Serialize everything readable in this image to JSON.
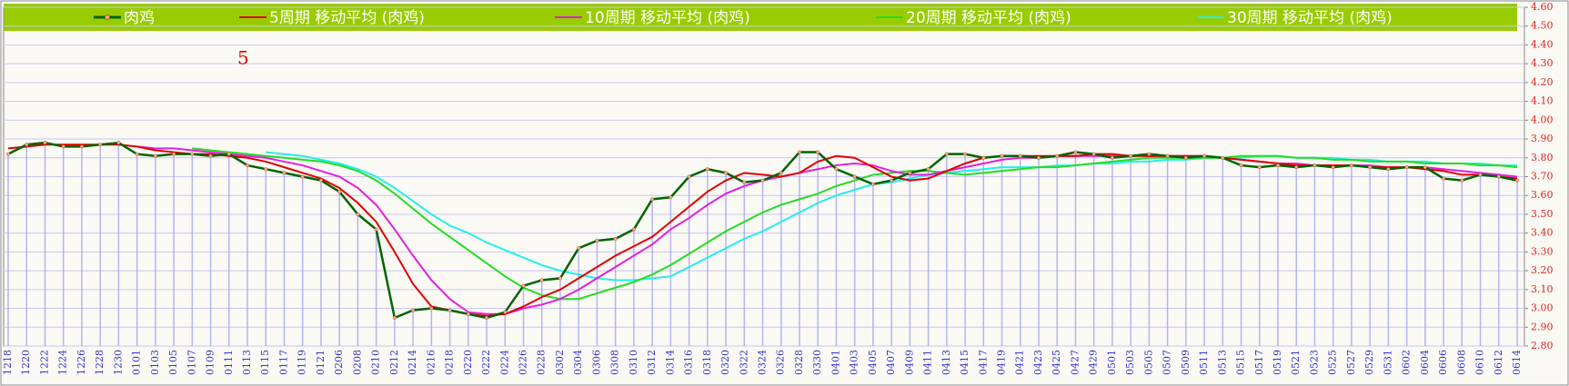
{
  "chart_data": {
    "type": "line",
    "categories": [
      "1218",
      "1220",
      "1222",
      "1224",
      "1226",
      "1228",
      "1230",
      "0101",
      "0103",
      "0105",
      "0107",
      "0109",
      "0111",
      "0113",
      "0115",
      "0117",
      "0119",
      "0121",
      "0206",
      "0208",
      "0210",
      "0212",
      "0214",
      "0216",
      "0218",
      "0220",
      "0222",
      "0224",
      "0226",
      "0228",
      "0302",
      "0304",
      "0306",
      "0308",
      "0310",
      "0312",
      "0314",
      "0316",
      "0318",
      "0320",
      "0322",
      "0324",
      "0326",
      "0328",
      "0330",
      "0401",
      "0403",
      "0405",
      "0407",
      "0409",
      "0411",
      "0413",
      "0415",
      "0417",
      "0419",
      "0421",
      "0423",
      "0425",
      "0427",
      "0429",
      "0501",
      "0503",
      "0505",
      "0507",
      "0509",
      "0511",
      "0513",
      "0515",
      "0517",
      "0519",
      "0521",
      "0523",
      "0525",
      "0527",
      "0529",
      "0531",
      "0602",
      "0604",
      "0606",
      "0608",
      "0610",
      "0612",
      "0614"
    ],
    "series": [
      {
        "name": "肉鸡",
        "color": "#006400",
        "values": [
          3.82,
          3.87,
          3.88,
          3.86,
          3.86,
          3.87,
          3.88,
          3.82,
          3.81,
          3.82,
          3.82,
          3.81,
          3.82,
          3.76,
          3.74,
          3.72,
          3.7,
          3.68,
          3.62,
          3.5,
          3.42,
          2.95,
          2.99,
          3.0,
          2.99,
          2.97,
          2.95,
          2.98,
          3.12,
          3.15,
          3.16,
          3.32,
          3.36,
          3.37,
          3.42,
          3.58,
          3.59,
          3.7,
          3.74,
          3.72,
          3.67,
          3.68,
          3.72,
          3.83,
          3.83,
          3.74,
          3.7,
          3.66,
          3.68,
          3.72,
          3.74,
          3.82,
          3.82,
          3.8,
          3.81,
          3.81,
          3.8,
          3.81,
          3.83,
          3.82,
          3.8,
          3.81,
          3.82,
          3.81,
          3.8,
          3.81,
          3.8,
          3.76,
          3.75,
          3.76,
          3.75,
          3.76,
          3.75,
          3.76,
          3.75,
          3.74,
          3.75,
          3.75,
          3.69,
          3.68,
          3.71,
          3.7,
          3.68
        ]
      },
      {
        "name": "5周期 移动平均 (肉鸡)",
        "color": "#e00000",
        "values": [
          3.85,
          3.86,
          3.87,
          3.87,
          3.87,
          3.87,
          3.87,
          3.86,
          3.84,
          3.83,
          3.82,
          3.82,
          3.81,
          3.8,
          3.78,
          3.75,
          3.72,
          3.69,
          3.64,
          3.56,
          3.46,
          3.3,
          3.13,
          3.01,
          2.99,
          2.97,
          2.96,
          2.97,
          3.01,
          3.06,
          3.1,
          3.16,
          3.22,
          3.28,
          3.33,
          3.38,
          3.46,
          3.54,
          3.62,
          3.68,
          3.72,
          3.71,
          3.7,
          3.72,
          3.78,
          3.81,
          3.8,
          3.75,
          3.7,
          3.68,
          3.69,
          3.73,
          3.77,
          3.8,
          3.81,
          3.81,
          3.81,
          3.81,
          3.81,
          3.82,
          3.82,
          3.81,
          3.81,
          3.81,
          3.81,
          3.81,
          3.8,
          3.79,
          3.78,
          3.77,
          3.76,
          3.76,
          3.76,
          3.76,
          3.75,
          3.75,
          3.75,
          3.74,
          3.73,
          3.71,
          3.71,
          3.7,
          3.69
        ]
      },
      {
        "name": "10周期 移动平均 (肉鸡)",
        "color": "#e020e0",
        "values": [
          null,
          null,
          null,
          null,
          null,
          null,
          null,
          3.86,
          3.85,
          3.85,
          3.84,
          3.83,
          3.82,
          3.81,
          3.8,
          3.78,
          3.76,
          3.73,
          3.7,
          3.64,
          3.55,
          3.42,
          3.28,
          3.15,
          3.05,
          2.98,
          2.97,
          2.97,
          3.0,
          3.02,
          3.05,
          3.1,
          3.16,
          3.22,
          3.28,
          3.34,
          3.42,
          3.48,
          3.55,
          3.61,
          3.65,
          3.68,
          3.7,
          3.72,
          3.74,
          3.76,
          3.77,
          3.76,
          3.73,
          3.71,
          3.71,
          3.73,
          3.75,
          3.77,
          3.79,
          3.8,
          3.8,
          3.81,
          3.81,
          3.81,
          3.81,
          3.81,
          3.81,
          3.81,
          3.81,
          3.81,
          3.8,
          3.79,
          3.78,
          3.77,
          3.77,
          3.76,
          3.76,
          3.76,
          3.76,
          3.75,
          3.75,
          3.75,
          3.74,
          3.73,
          3.72,
          3.71,
          3.7
        ]
      },
      {
        "name": "20周期 移动平均 (肉鸡)",
        "color": "#22dd22",
        "values": [
          null,
          null,
          null,
          null,
          null,
          null,
          null,
          null,
          null,
          null,
          3.85,
          3.84,
          3.83,
          3.82,
          3.81,
          3.8,
          3.79,
          3.78,
          3.76,
          3.73,
          3.68,
          3.61,
          3.53,
          3.45,
          3.38,
          3.31,
          3.24,
          3.17,
          3.11,
          3.07,
          3.05,
          3.05,
          3.08,
          3.11,
          3.14,
          3.18,
          3.23,
          3.29,
          3.35,
          3.41,
          3.46,
          3.51,
          3.55,
          3.58,
          3.61,
          3.65,
          3.68,
          3.71,
          3.72,
          3.73,
          3.73,
          3.72,
          3.71,
          3.72,
          3.73,
          3.74,
          3.75,
          3.75,
          3.76,
          3.77,
          3.78,
          3.79,
          3.8,
          3.8,
          3.8,
          3.8,
          3.8,
          3.81,
          3.81,
          3.81,
          3.8,
          3.8,
          3.79,
          3.79,
          3.78,
          3.78,
          3.78,
          3.77,
          3.77,
          3.77,
          3.76,
          3.76,
          3.75
        ]
      },
      {
        "name": "30周期 移动平均 (肉鸡)",
        "color": "#22eeee",
        "values": [
          null,
          null,
          null,
          null,
          null,
          null,
          null,
          null,
          null,
          null,
          null,
          null,
          null,
          null,
          3.83,
          3.82,
          3.81,
          3.79,
          3.77,
          3.74,
          3.7,
          3.64,
          3.57,
          3.5,
          3.44,
          3.4,
          3.35,
          3.31,
          3.27,
          3.23,
          3.2,
          3.18,
          3.16,
          3.15,
          3.15,
          3.16,
          3.17,
          3.22,
          3.27,
          3.32,
          3.37,
          3.41,
          3.46,
          3.51,
          3.56,
          3.6,
          3.63,
          3.66,
          3.67,
          3.69,
          3.71,
          3.72,
          3.73,
          3.74,
          3.75,
          3.75,
          3.75,
          3.76,
          3.76,
          3.77,
          3.77,
          3.78,
          3.78,
          3.79,
          3.79,
          3.8,
          3.8,
          3.8,
          3.81,
          3.81,
          3.8,
          3.8,
          3.8,
          3.79,
          3.79,
          3.78,
          3.78,
          3.78,
          3.77,
          3.77,
          3.77,
          3.76,
          3.76
        ]
      }
    ],
    "annotations": [
      {
        "text": "5"
      }
    ],
    "ylim": [
      2.8,
      4.6
    ],
    "yticks": [
      {
        "value": 2.8,
        "label": "2.80"
      },
      {
        "value": 2.9,
        "label": "2.90"
      },
      {
        "value": 3.0,
        "label": "3.00"
      },
      {
        "value": 3.1,
        "label": "3.10"
      },
      {
        "value": 3.2,
        "label": "3.20"
      },
      {
        "value": 3.3,
        "label": "3.30"
      },
      {
        "value": 3.4,
        "label": "3.40"
      },
      {
        "value": 3.5,
        "label": "3.50"
      },
      {
        "value": 3.6,
        "label": "3.60"
      },
      {
        "value": 3.7,
        "label": "3.70"
      },
      {
        "value": 3.8,
        "label": "3.80"
      },
      {
        "value": 3.9,
        "label": "3.90"
      },
      {
        "value": 4.0,
        "label": "4.00"
      },
      {
        "value": 4.1,
        "label": "4.10"
      },
      {
        "value": 4.2,
        "label": "4.20"
      },
      {
        "value": 4.3,
        "label": "4.30"
      },
      {
        "value": 4.4,
        "label": "4.40"
      },
      {
        "value": 4.5,
        "label": "4.50"
      },
      {
        "value": 4.6,
        "label": "4.60"
      }
    ],
    "grid": true,
    "legend": "top",
    "y_axis_side": "right"
  }
}
